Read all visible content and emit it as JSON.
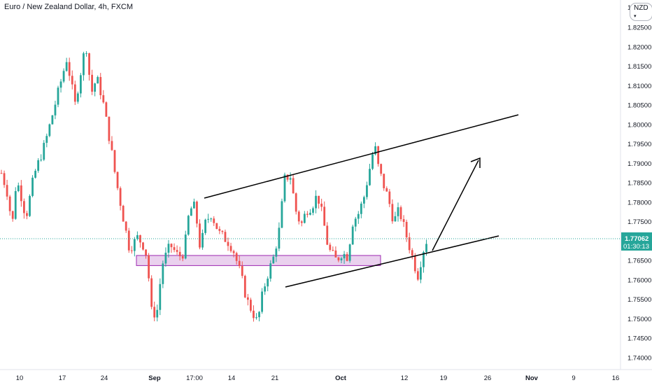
{
  "header": {
    "title": "Euro / New Zealand Dollar, 4h, FXCM",
    "currency_badge": "NZD",
    "currency_icon": "chevron-down-icon"
  },
  "price_tag": {
    "price": "1.77062",
    "countdown": "01:30:13",
    "color": "#26a69a"
  },
  "colors": {
    "up": "#26a69a",
    "down": "#ef5350",
    "support_zone_fill": "#e1bee7",
    "support_zone_border": "#9c27b0",
    "drawing": "#000000",
    "last_price_line": "#26a69a"
  },
  "chart_data": {
    "type": "candlestick",
    "title": "Euro / New Zealand Dollar, 4h, FXCM",
    "y_ticks": [
      "1.82500",
      "1.82000",
      "1.81500",
      "1.81000",
      "1.80500",
      "1.80000",
      "1.79500",
      "1.79000",
      "1.78500",
      "1.78000",
      "1.77500",
      "1.77000",
      "1.76500",
      "1.76000",
      "1.75500",
      "1.75000",
      "1.74500",
      "1.74000"
    ],
    "ylim": [
      1.738,
      1.828
    ],
    "x_ticks": [
      "10",
      "17",
      "24",
      "Sep",
      "17:00",
      "14",
      "21",
      "Oct",
      "12",
      "19",
      "26",
      "Nov",
      "9",
      "16"
    ],
    "x_ticks_bold": [
      "Sep",
      "Oct",
      "Nov"
    ],
    "price_path": [
      [
        0,
        1.7875
      ],
      [
        0.02,
        1.783
      ],
      [
        0.04,
        1.774
      ],
      [
        0.055,
        1.786
      ],
      [
        0.075,
        1.781
      ],
      [
        0.09,
        1.776
      ],
      [
        0.12,
        1.787
      ],
      [
        0.16,
        1.795
      ],
      [
        0.2,
        1.806
      ],
      [
        0.24,
        1.817
      ],
      [
        0.27,
        1.805
      ],
      [
        0.29,
        1.813
      ],
      [
        0.31,
        1.821
      ],
      [
        0.33,
        1.808
      ],
      [
        0.35,
        1.812
      ],
      [
        0.37,
        1.807
      ],
      [
        0.4,
        1.795
      ],
      [
        0.42,
        1.786
      ],
      [
        0.45,
        1.775
      ],
      [
        0.47,
        1.768
      ],
      [
        0.5,
        1.771
      ],
      [
        0.52,
        1.769
      ],
      [
        0.535,
        1.766
      ],
      [
        0.55,
        1.752
      ],
      [
        0.57,
        1.751
      ],
      [
        0.59,
        1.764
      ],
      [
        0.62,
        1.769
      ],
      [
        0.65,
        1.766
      ],
      [
        0.67,
        1.767
      ],
      [
        0.69,
        1.778
      ],
      [
        0.71,
        1.779
      ],
      [
        0.73,
        1.768
      ],
      [
        0.75,
        1.775
      ],
      [
        0.77,
        1.777
      ],
      [
        0.8,
        1.772
      ],
      [
        0.83,
        1.77
      ],
      [
        0.85,
        1.768
      ],
      [
        0.88,
        1.761
      ],
      [
        0.9,
        1.755
      ],
      [
        0.92,
        1.752
      ],
      [
        0.94,
        1.749
      ],
      [
        0.96,
        1.757
      ],
      [
        0.98,
        1.762
      ],
      [
        1.0,
        1.766
      ],
      [
        1.02,
        1.773
      ],
      [
        1.04,
        1.786
      ],
      [
        1.06,
        1.787
      ],
      [
        1.08,
        1.778
      ],
      [
        1.1,
        1.774
      ],
      [
        1.12,
        1.778
      ],
      [
        1.14,
        1.779
      ],
      [
        1.16,
        1.782
      ],
      [
        1.18,
        1.776
      ],
      [
        1.2,
        1.768
      ],
      [
        1.23,
        1.765
      ],
      [
        1.25,
        1.767
      ],
      [
        1.27,
        1.766
      ],
      [
        1.29,
        1.775
      ],
      [
        1.31,
        1.777
      ],
      [
        1.33,
        1.781
      ],
      [
        1.35,
        1.788
      ],
      [
        1.37,
        1.795
      ],
      [
        1.38,
        1.79
      ],
      [
        1.4,
        1.785
      ],
      [
        1.42,
        1.781
      ],
      [
        1.44,
        1.775
      ],
      [
        1.46,
        1.778
      ],
      [
        1.48,
        1.773
      ],
      [
        1.5,
        1.768
      ],
      [
        1.52,
        1.763
      ],
      [
        1.53,
        1.761
      ],
      [
        1.54,
        1.765
      ],
      [
        1.55,
        1.768
      ],
      [
        1.56,
        1.77
      ]
    ],
    "support_zone": [
      1.7637,
      1.7663
    ],
    "ascending_channel": {
      "upper_line": [
        [
          1.7812,
          0
        ],
        [
          1.8026,
          1
        ]
      ],
      "lower_line": [
        [
          1.758,
          0
        ],
        [
          1.772,
          1
        ]
      ]
    },
    "projection_arrow": [
      1.7675,
      1.791
    ],
    "last_price": 1.77062,
    "countdown": "01:30:13"
  }
}
